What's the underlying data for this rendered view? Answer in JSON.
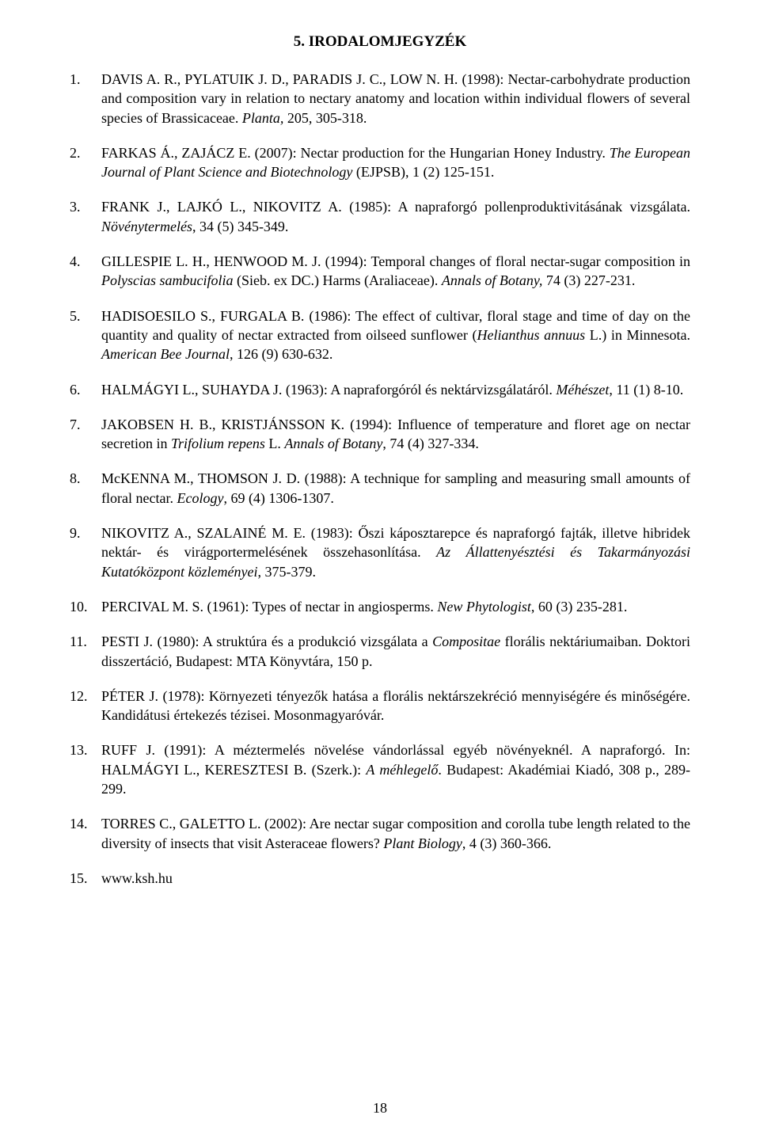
{
  "title": "5. IRODALOMJEGYZÉK",
  "page_number": "18",
  "refs": [
    {
      "num": "1.",
      "html": "DAVIS A. R., PYLATUIK J. D., PARADIS J. C., LOW N. H. (1998): Nectar-carbohydrate production and composition vary in relation to nectary anatomy and location within individual flowers of several species of Brassicaceae. <i>Planta,</i> 205, 305-318."
    },
    {
      "num": "2.",
      "html": "FARKAS Á., ZAJÁCZ E. (2007): Nectar production for the Hungarian Honey Industry. <i>The European Journal of Plant Science and Biotechnology</i> (EJPSB), 1 (2) 125-151."
    },
    {
      "num": "3.",
      "html": "FRANK J., LAJKÓ L., NIKOVITZ A. (1985): A napraforgó pollenproduktivitásának vizsgálata. <i>Növénytermelés</i>, 34 (5) 345-349."
    },
    {
      "num": "4.",
      "html": "GILLESPIE L. H., HENWOOD M. J. (1994): Temporal changes of floral nectar-sugar composition in <i>Polyscias sambucifolia</i> (Sieb. ex DC.) Harms (Araliaceae). <i>Annals of Botany,</i> 74 (3) 227-231."
    },
    {
      "num": "5.",
      "html": "HADISOESILO S., FURGALA B. (1986): The effect of cultivar, floral stage and time of day on the quantity and quality of nectar extracted from oilseed sunflower (<i>Helianthus annuus</i> L.) in Minnesota. <i>American Bee Journal</i>, 126 (9) 630-632."
    },
    {
      "num": "6.",
      "html": "HALMÁGYI L., SUHAYDA J. (1963): A napraforgóról és nektárvizsgálatáról. <i>Méhészet</i>, 11 (1) 8-10."
    },
    {
      "num": "7.",
      "html": "JAKOBSEN H. B., KRISTJÁNSSON K. (1994): Influence of temperature and floret age on nectar secretion in <i>Trifolium repens</i> L. <i>Annals of Botany</i>, 74 (4) 327-334."
    },
    {
      "num": "8.",
      "html": "McKENNA M., THOMSON J. D. (1988): A technique for sampling and measuring small amounts of floral nectar. <i>Ecology</i>, 69 (4) 1306-1307."
    },
    {
      "num": "9.",
      "html": "NIKOVITZ A., SZALAINÉ M. E. (1983): Őszi káposztarepce és napraforgó fajták, illetve hibridek nektár- és virágportermelésének összehasonlítása. <i>Az Állattenyésztési és Takarmányozási Kutatóközpont közleményei</i>, 375-379."
    },
    {
      "num": "10.",
      "html": "PERCIVAL M. S. (1961): Types of nectar in angiosperms. <i>New Phytologist</i>, 60 (3) 235-281."
    },
    {
      "num": "11.",
      "html": "PESTI J. (1980): A struktúra és a produkció vizsgálata a <i>Compositae</i> florális nektáriumaiban. Doktori disszertáció, Budapest: MTA Könyvtára, 150 p."
    },
    {
      "num": "12.",
      "html": "PÉTER J. (1978): Környezeti tényezők hatása a florális nektárszekréció mennyiségére és minőségére. Kandidátusi értekezés tézisei. Mosonmagyaróvár."
    },
    {
      "num": "13.",
      "html": "RUFF J. (1991): A méztermelés növelése vándorlással egyéb növényeknél. A napraforgó. In: HALMÁGYI L., KERESZTESI B. (Szerk.): <i>A méhlegelő</i>. Budapest: Akadémiai Kiadó, 308 p., 289-299."
    },
    {
      "num": "14.",
      "html": "TORRES C., GALETTO L. (2002): Are nectar sugar composition and corolla tube length related to the diversity of insects that visit Asteraceae flowers? <i>Plant Biology</i>, 4 (3) 360-366."
    },
    {
      "num": "15.",
      "html": "www.ksh.hu"
    }
  ]
}
